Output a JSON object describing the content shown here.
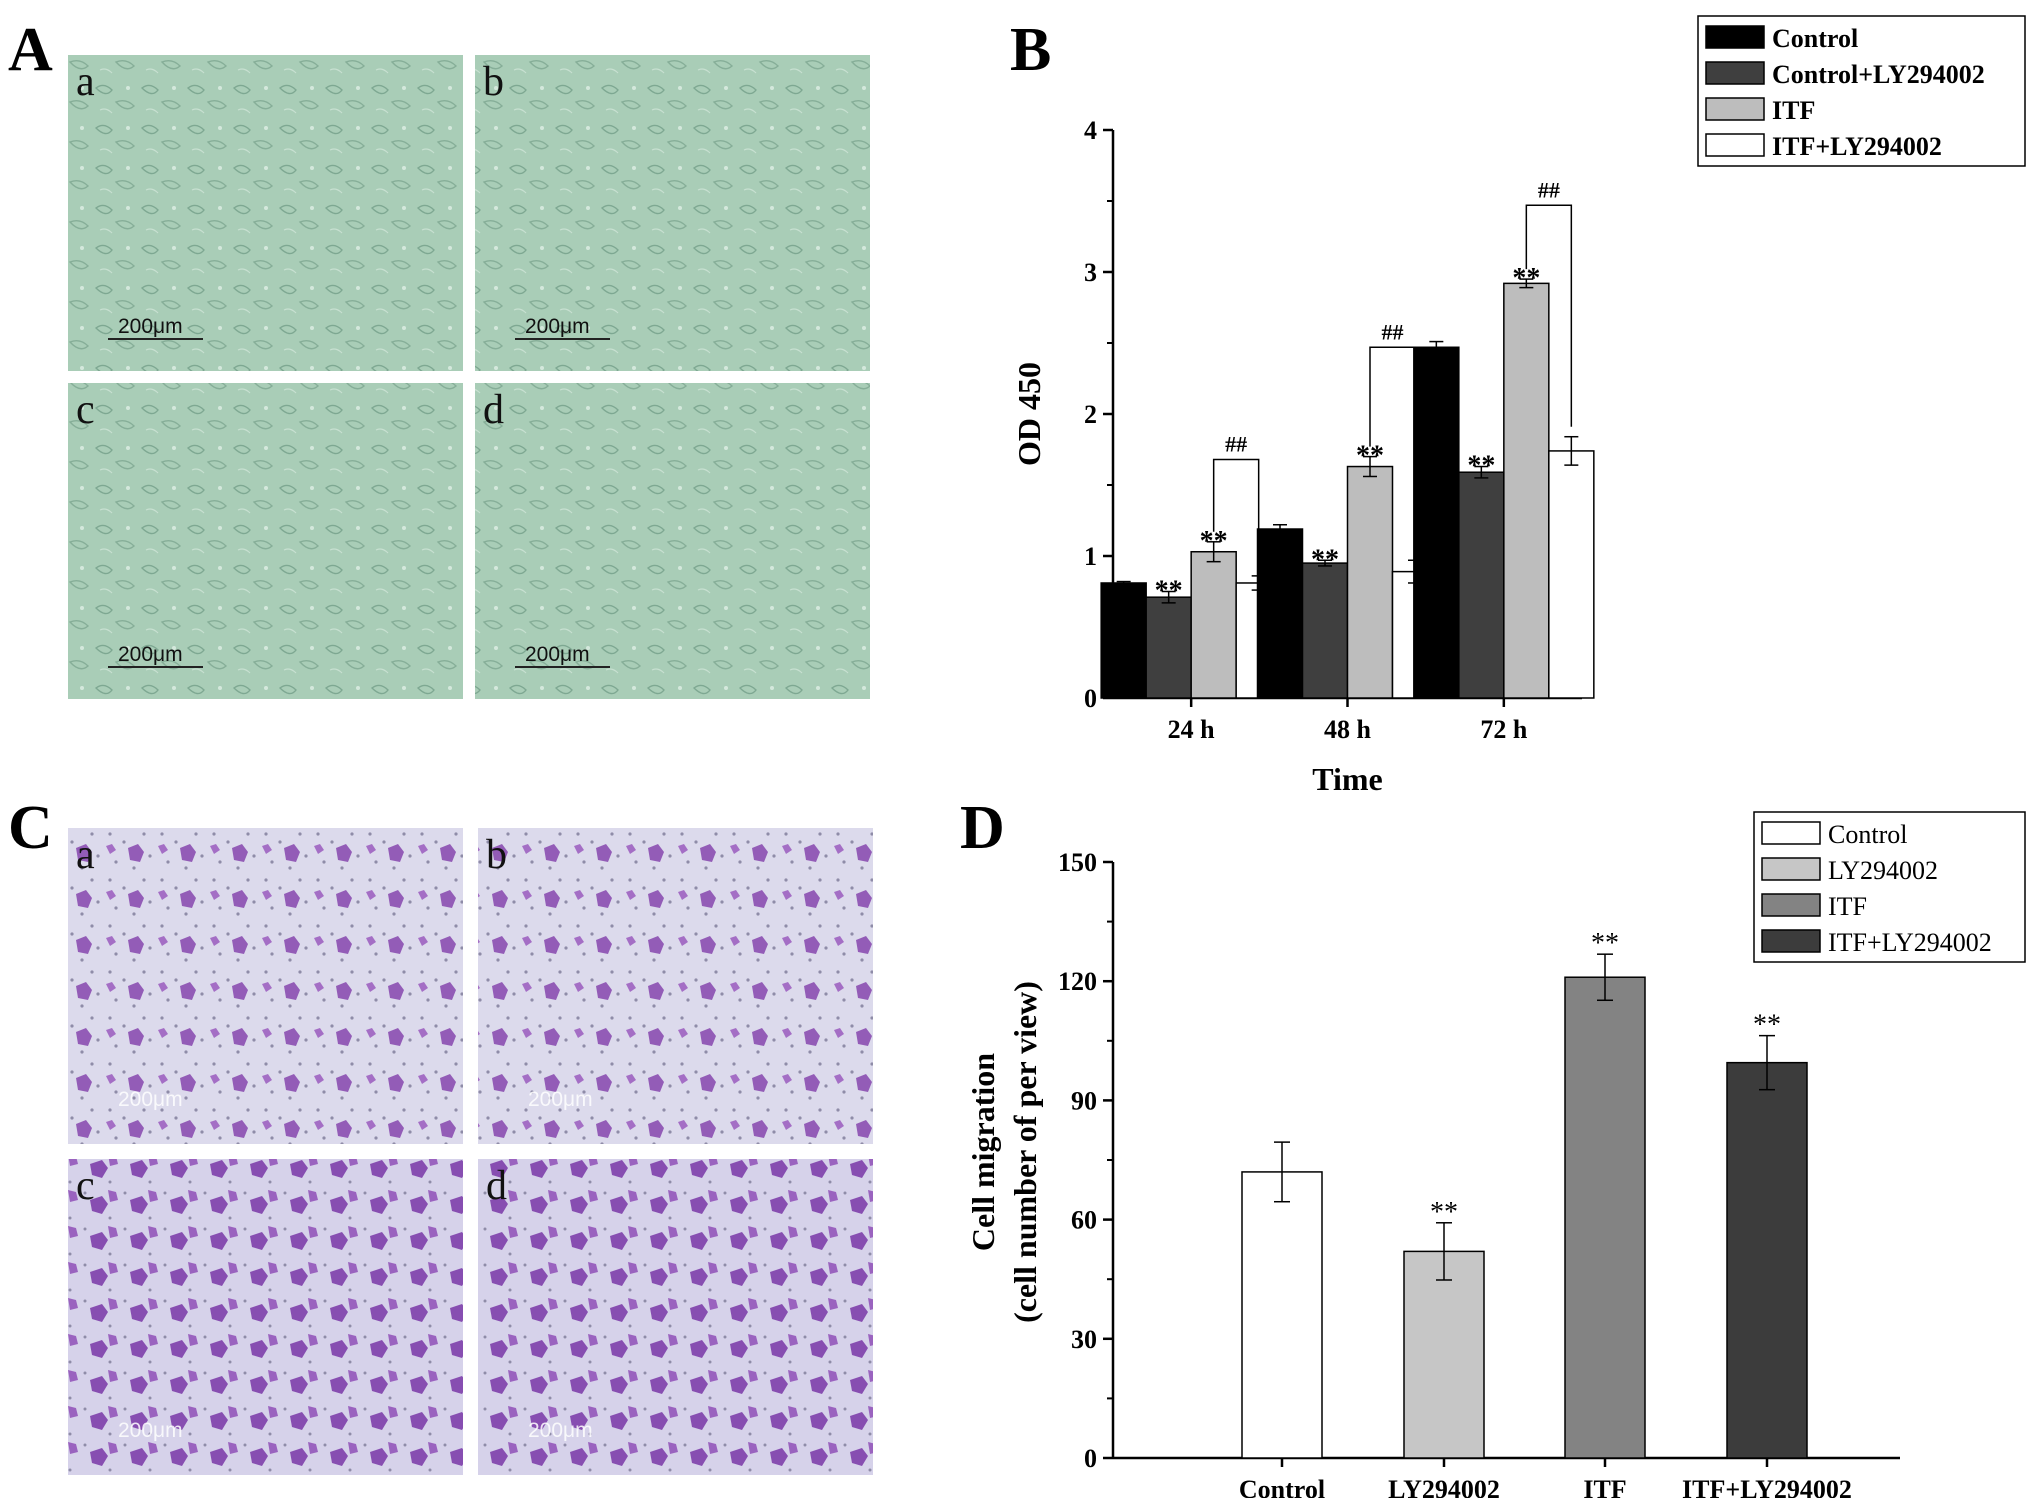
{
  "panels": {
    "A": {
      "letter": "A",
      "images": [
        {
          "label": "a",
          "scale": "200μm"
        },
        {
          "label": "b",
          "scale": "200μm"
        },
        {
          "label": "c",
          "scale": "200μm"
        },
        {
          "label": "d",
          "scale": "200μm"
        }
      ],
      "image_color": "#a8cbb5"
    },
    "C": {
      "letter": "C",
      "images": [
        {
          "label": "a",
          "scale": "200μm"
        },
        {
          "label": "b",
          "scale": "200μm"
        },
        {
          "label": "c",
          "scale": "200μm"
        },
        {
          "label": "d",
          "scale": "200μm"
        }
      ],
      "image_color": "#d8d6ea",
      "stain_color": "#8a4ab0"
    }
  },
  "chart_data": [
    {
      "panel": "B",
      "type": "bar",
      "xlabel": "Time",
      "ylabel": "OD 450",
      "ylim": [
        0,
        4
      ],
      "yticks": [
        0,
        1,
        2,
        3,
        4
      ],
      "categories": [
        "24 h",
        "48 h",
        "72 h"
      ],
      "legend_position": "top-right",
      "series": [
        {
          "name": "Control",
          "color": "#000000",
          "values": [
            0.81,
            1.19,
            2.47
          ],
          "errors": [
            0.01,
            0.03,
            0.04
          ]
        },
        {
          "name": "Control+LY294002",
          "color": "#3f3f3f",
          "values": [
            0.71,
            0.95,
            1.59
          ],
          "errors": [
            0.04,
            0.02,
            0.04
          ]
        },
        {
          "name": "ITF",
          "color": "#bdbdbd",
          "values": [
            1.03,
            1.63,
            2.92
          ],
          "errors": [
            0.07,
            0.07,
            0.03
          ]
        },
        {
          "name": "ITF+LY294002",
          "color": "#ffffff",
          "values": [
            0.81,
            0.89,
            1.74
          ],
          "errors": [
            0.05,
            0.08,
            0.1
          ]
        }
      ],
      "star_labels": [
        {
          "category": 0,
          "series": 1,
          "text": "**"
        },
        {
          "category": 0,
          "series": 2,
          "text": "**"
        },
        {
          "category": 1,
          "series": 1,
          "text": "**"
        },
        {
          "category": 1,
          "series": 2,
          "text": "**"
        },
        {
          "category": 2,
          "series": 1,
          "text": "**"
        },
        {
          "category": 2,
          "series": 2,
          "text": "**"
        }
      ],
      "brackets": [
        {
          "category": 0,
          "from_series": 2,
          "to_series": 3,
          "text": "##",
          "top_value": 1.68
        },
        {
          "category": 1,
          "from_series": 2,
          "to_series": 3,
          "text": "##",
          "top_value": 2.47
        },
        {
          "category": 2,
          "from_series": 2,
          "to_series": 3,
          "text": "##",
          "top_value": 3.47
        }
      ]
    },
    {
      "panel": "D",
      "type": "bar",
      "xlabel": "",
      "ylabel": "Cell migration",
      "ylabel2": "(cell number of per view)",
      "ylim": [
        0,
        150
      ],
      "yticks": [
        0,
        30,
        60,
        90,
        120,
        150
      ],
      "categories": [
        "Control",
        "LY294002",
        "ITF",
        "ITF+LY294002"
      ],
      "legend_position": "top-right",
      "series": [
        {
          "name": "Control",
          "color": "#ffffff"
        },
        {
          "name": "LY294002",
          "color": "#c6c6c6"
        },
        {
          "name": "ITF",
          "color": "#838383"
        },
        {
          "name": "ITF+LY294002",
          "color": "#3c3c3c"
        }
      ],
      "values": [
        72,
        52,
        121,
        99.5
      ],
      "errors": [
        7.5,
        7.2,
        5.8,
        6.8
      ],
      "star_labels": [
        {
          "category": 1,
          "text": "**"
        },
        {
          "category": 2,
          "text": "**"
        },
        {
          "category": 3,
          "text": "**"
        }
      ]
    }
  ]
}
